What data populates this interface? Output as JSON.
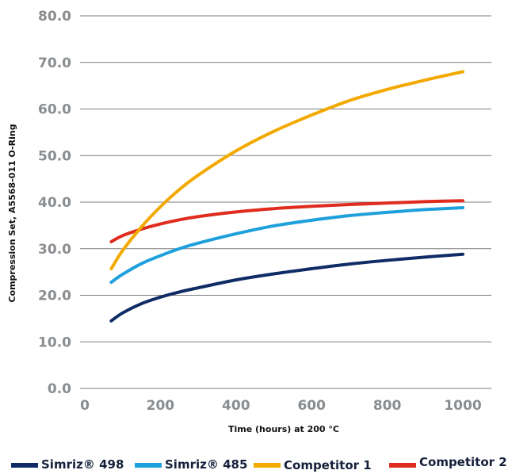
{
  "chart_data": {
    "type": "line",
    "xlabel": "Time (hours) at 200 °C",
    "ylabel": "Compression Set, A5568-011 O-Ring",
    "xlim": [
      0,
      1000
    ],
    "ylim": [
      0,
      80
    ],
    "x_ticks": [
      "0",
      "200",
      "400",
      "600",
      "800",
      "1000"
    ],
    "y_ticks": [
      "0.0",
      "10.0",
      "20.0",
      "30.0",
      "40.0",
      "50.0",
      "60.0",
      "70.0",
      "80.0"
    ],
    "grid": "horizontal",
    "legend_position": "bottom",
    "x": [
      70,
      100,
      150,
      200,
      250,
      300,
      400,
      500,
      600,
      700,
      800,
      900,
      1000
    ],
    "series": [
      {
        "name": "Simriz® 498",
        "color": "#0f2c66",
        "values": [
          14.5,
          16.2,
          18.2,
          19.6,
          20.7,
          21.6,
          23.3,
          24.6,
          25.7,
          26.7,
          27.5,
          28.2,
          28.8
        ]
      },
      {
        "name": "Simriz® 485",
        "color": "#1ea0dc",
        "values": [
          22.8,
          24.5,
          26.8,
          28.5,
          30.0,
          31.2,
          33.2,
          34.9,
          36.1,
          37.1,
          37.8,
          38.4,
          38.8
        ]
      },
      {
        "name": "Competitor 1",
        "color": "#f2a900",
        "values": [
          25.7,
          29.6,
          34.7,
          39.0,
          42.7,
          45.8,
          51.0,
          55.2,
          58.7,
          61.8,
          64.2,
          66.2,
          68.0
        ]
      },
      {
        "name": "Competitor 2",
        "color": "#e02b1f",
        "values": [
          31.5,
          32.8,
          34.2,
          35.3,
          36.2,
          36.9,
          37.9,
          38.6,
          39.1,
          39.5,
          39.8,
          40.1,
          40.3
        ]
      }
    ]
  }
}
